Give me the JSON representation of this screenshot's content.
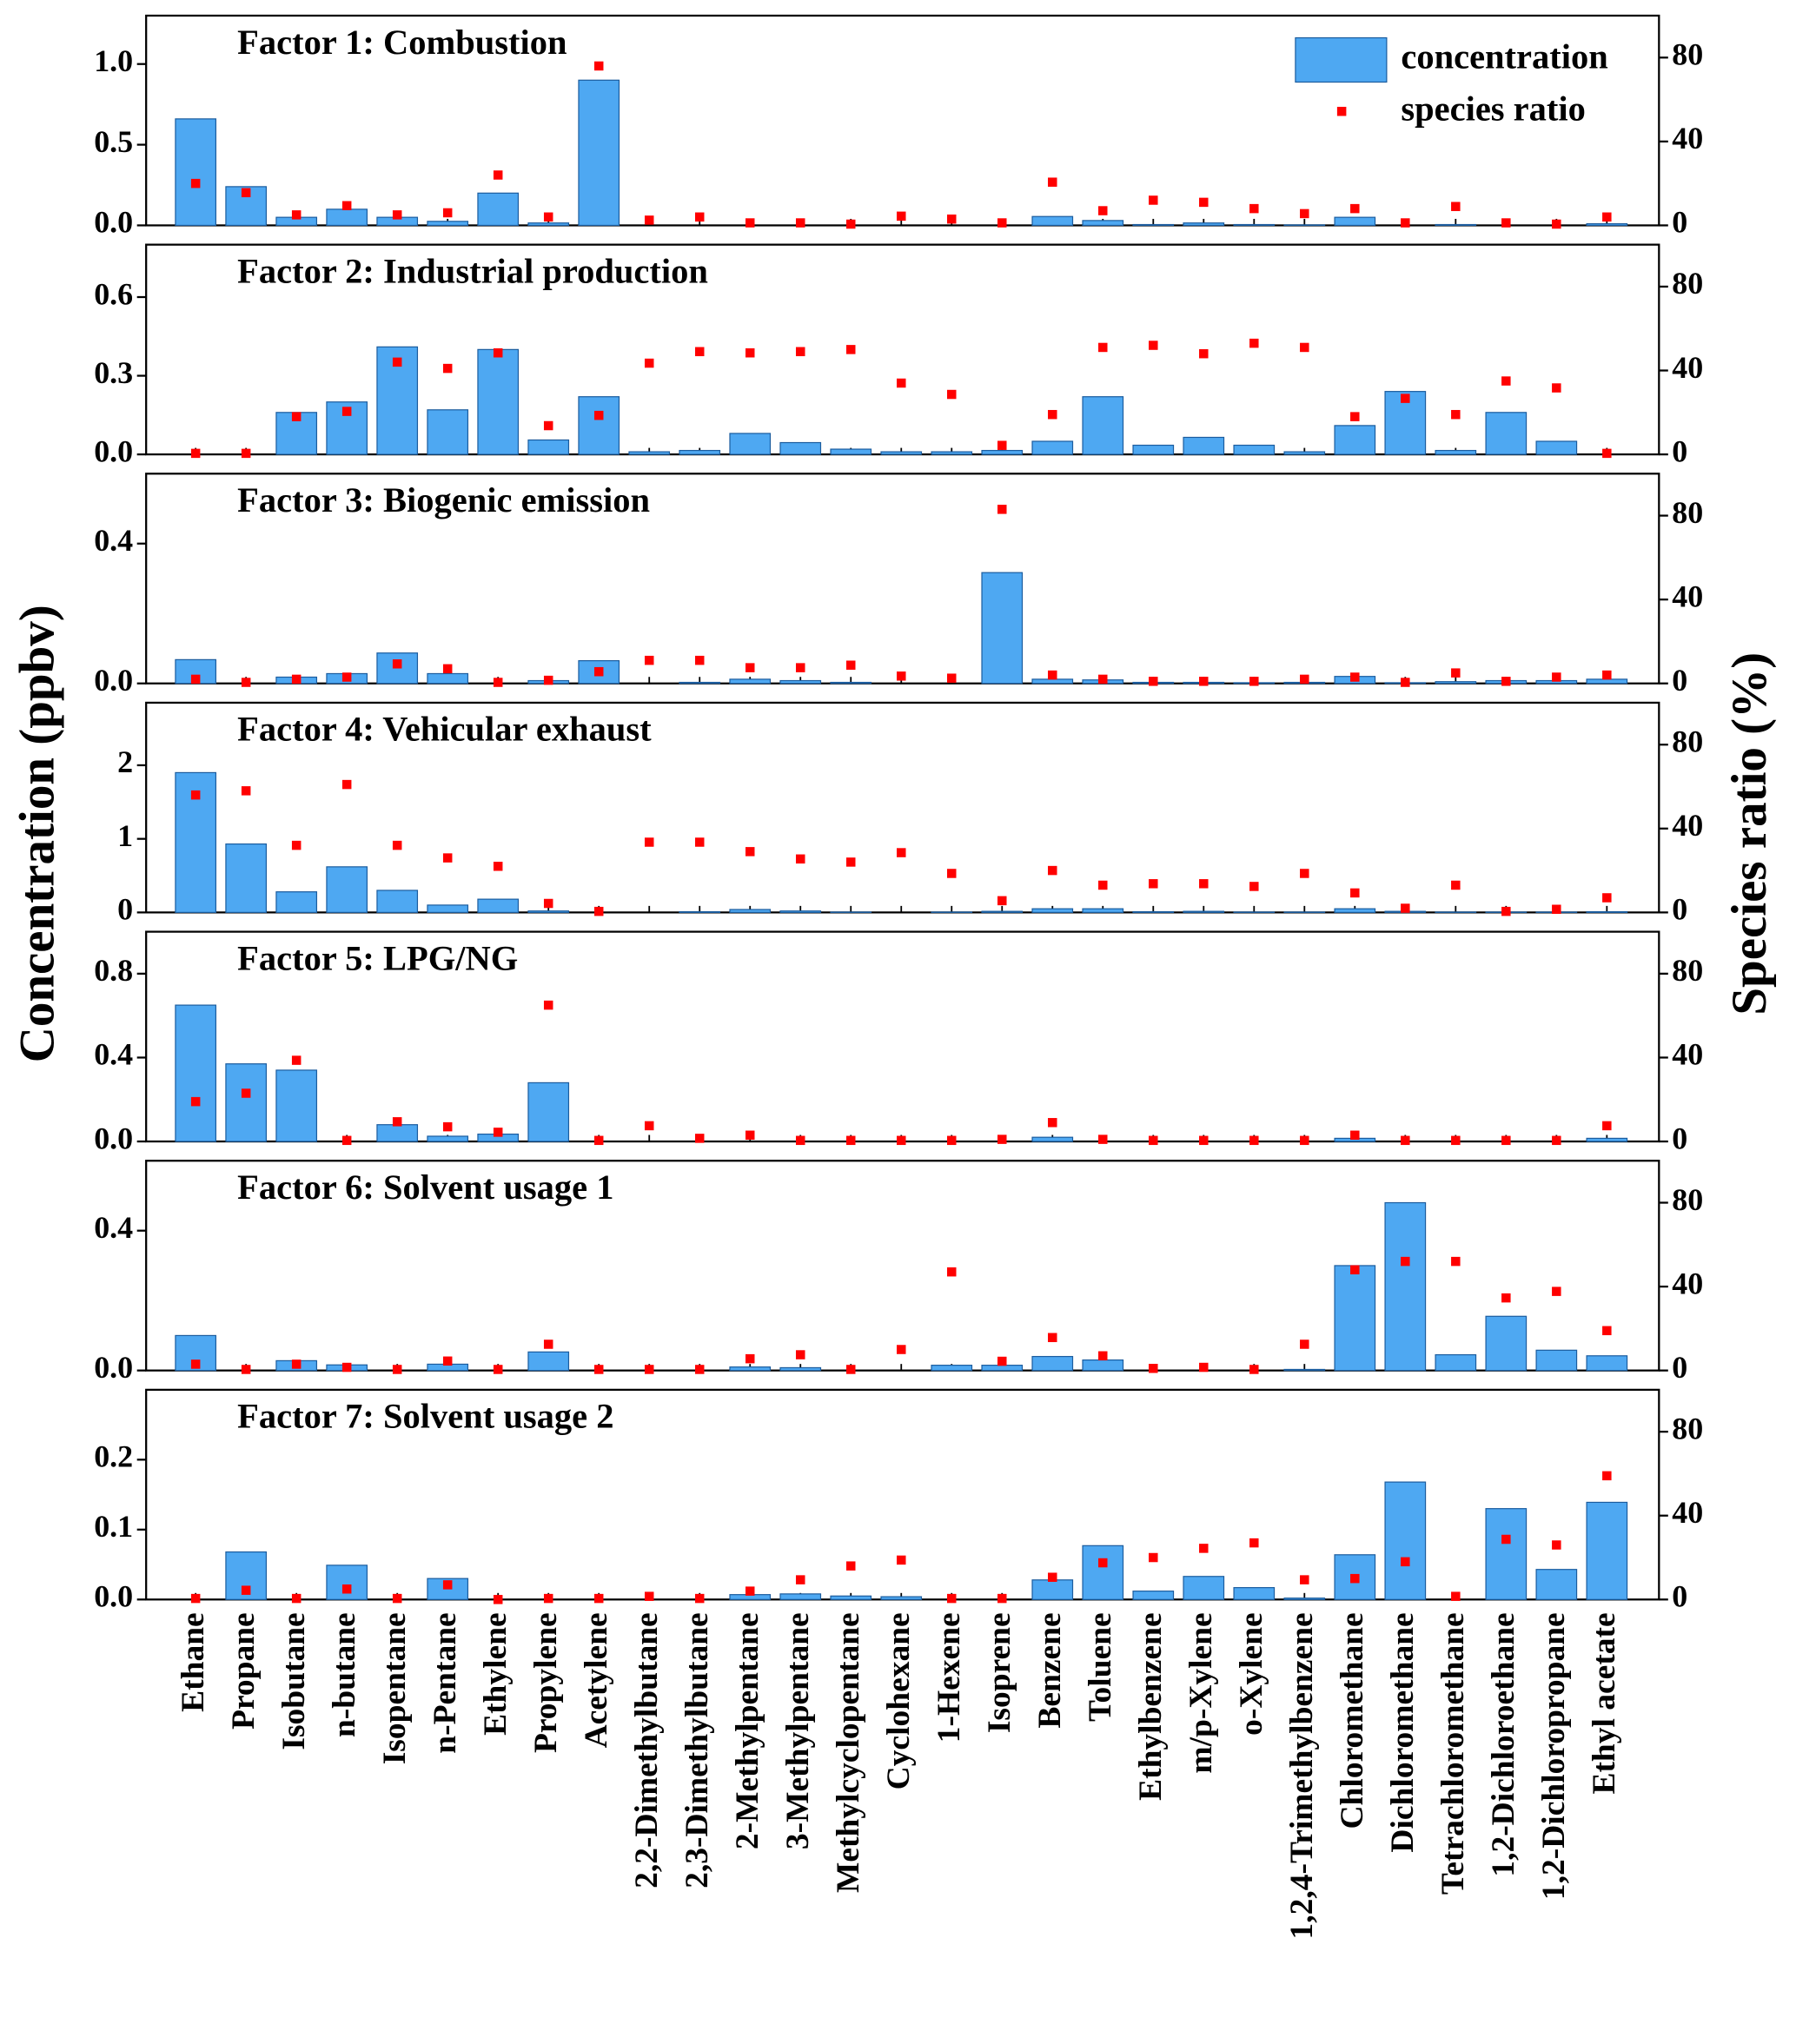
{
  "chart_data": {
    "type": "bar",
    "ylabel": "Concentration (ppbv)",
    "y2label": "Species ratio (%)",
    "legend": "upper right",
    "categories": [
      "Ethane",
      "Propane",
      "Isobutane",
      "n-butane",
      "Isopentane",
      "n-Pentane",
      "Ethylene",
      "Propylene",
      "Acetylene",
      "2,2-Dimethylbutane",
      "2,3-Dimethylbutane",
      "2-Methylpentane",
      "3-Methylpentane",
      "Methylcyclopentane",
      "Cyclohexane",
      "1-Hexene",
      "Isoprene",
      "Benzene",
      "Toluene",
      "Ethylbenzene",
      "m/p-Xylene",
      "o-Xylene",
      "1,2,4-Trimethylbenzene",
      "Chloromethane",
      "Dichloromethane",
      "Tetrachloromethane",
      "1,2-Dichloroethane",
      "1,2-Dichloropropane",
      "Ethyl acetate"
    ],
    "series": [
      {
        "name": "concentration",
        "color": "#4ea8f2",
        "mark": "bar"
      },
      {
        "name": "species ratio",
        "color": "#ff0000",
        "mark": "point",
        "axis": "y2"
      }
    ],
    "panels": [
      {
        "title": "Factor 1: Combustion",
        "ylim": [
          0,
          1.3
        ],
        "yticks": [
          {
            "value": 0,
            "label": "0.0"
          },
          {
            "value": 0.5,
            "label": "0.5"
          },
          {
            "value": 1,
            "label": "1.0"
          }
        ],
        "y2lim": [
          0,
          100
        ],
        "y2ticks": [
          0,
          40,
          80
        ],
        "series": [
          {
            "values": [
              0.66,
              0.24,
              0.05,
              0.1,
              0.05,
              0.025,
              0.2,
              0.015,
              0.9,
              0,
              0,
              0,
              0,
              0,
              0,
              0,
              0,
              0.055,
              0.03,
              0.005,
              0.015,
              0.005,
              0.003,
              0.05,
              0,
              0.005,
              0,
              0,
              0.01
            ]
          },
          {
            "values": [
              20,
              15.6,
              5,
              9.4,
              5,
              6,
              24,
              4,
              76,
              2.5,
              4,
              1.2,
              1.2,
              0.6,
              4.4,
              3,
              1.2,
              20.6,
              7,
              12,
              11,
              8,
              5.6,
              8,
              1.2,
              9,
              1.2,
              0.6,
              4
            ]
          }
        ]
      },
      {
        "title": "Factor 2: Industrial production",
        "ylim": [
          0,
          0.8
        ],
        "yticks": [
          {
            "value": 0,
            "label": "0.0"
          },
          {
            "value": 0.3,
            "label": "0.3"
          },
          {
            "value": 0.6,
            "label": "0.6"
          }
        ],
        "y2lim": [
          0,
          100
        ],
        "y2ticks": [
          0,
          40,
          80
        ],
        "series": [
          {
            "values": [
              0,
              0,
              0.16,
              0.2,
              0.41,
              0.17,
              0.4,
              0.055,
              0.22,
              0.01,
              0.015,
              0.08,
              0.045,
              0.02,
              0.01,
              0.01,
              0.015,
              0.05,
              0.22,
              0.035,
              0.065,
              0.035,
              0.01,
              0.11,
              0.24,
              0.015,
              0.16,
              0.05,
              0
            ]
          },
          {
            "values": [
              0.5,
              0.5,
              18,
              20.5,
              44,
              41,
              48.4,
              13.7,
              18.6,
              43.5,
              49,
              48.4,
              49,
              50,
              34,
              28.6,
              4.3,
              19,
              51,
              52,
              48,
              53,
              51,
              18,
              26.7,
              19,
              35,
              31.7,
              0.5
            ]
          }
        ]
      },
      {
        "title": "Factor 3: Biogenic emission",
        "ylim": [
          0,
          0.6
        ],
        "yticks": [
          {
            "value": 0,
            "label": "0.0"
          },
          {
            "value": 0.4,
            "label": "0.4"
          }
        ],
        "y2lim": [
          0,
          100
        ],
        "y2ticks": [
          0,
          40,
          80
        ],
        "series": [
          {
            "values": [
              0.068,
              0,
              0.018,
              0.028,
              0.087,
              0.028,
              0,
              0.008,
              0.065,
              0,
              0.003,
              0.012,
              0.008,
              0.003,
              0,
              0,
              0.317,
              0.012,
              0.01,
              0.003,
              0.003,
              0.002,
              0.003,
              0.02,
              0.002,
              0.005,
              0.008,
              0.008,
              0.012
            ]
          },
          {
            "values": [
              2,
              0.5,
              2,
              3,
              9.3,
              7,
              0.5,
              1.5,
              5.6,
              11,
              11,
              7.5,
              7.5,
              8.7,
              3.5,
              2.5,
              83,
              4,
              2,
              1,
              1,
              1,
              2,
              3,
              0.5,
              5,
              1,
              3,
              4
            ]
          }
        ]
      },
      {
        "title": "Factor 4: Vehicular exhaust",
        "ylim": [
          0,
          2.85
        ],
        "yticks": [
          0,
          1,
          2
        ],
        "y2lim": [
          0,
          100
        ],
        "y2ticks": [
          0,
          40,
          80
        ],
        "series": [
          {
            "values": [
              1.9,
              0.93,
              0.28,
              0.62,
              0.3,
              0.1,
              0.18,
              0.02,
              0,
              0,
              0.01,
              0.04,
              0.02,
              0.005,
              0,
              0.005,
              0.015,
              0.05,
              0.05,
              0.01,
              0.015,
              0.005,
              0.005,
              0.05,
              0.015,
              0.005,
              0.005,
              0.005,
              0.01
            ]
          },
          {
            "values": [
              56,
              58,
              32,
              61,
              32,
              26,
              22,
              4.3,
              0.5,
              33.5,
              33.5,
              29,
              25.5,
              24,
              28.5,
              18.6,
              5.6,
              20,
              13,
              13.7,
              13.7,
              12.4,
              18.6,
              9.3,
              2,
              13,
              0.5,
              1.5,
              7
            ]
          }
        ]
      },
      {
        "title": "Factor 5: LPG/NG",
        "ylim": [
          0,
          1.0
        ],
        "yticks": [
          {
            "value": 0,
            "label": "0.0"
          },
          {
            "value": 0.4,
            "label": "0.4"
          },
          {
            "value": 0.8,
            "label": "0.8"
          }
        ],
        "y2lim": [
          0,
          100
        ],
        "y2ticks": [
          0,
          40,
          80
        ],
        "series": [
          {
            "values": [
              0.65,
              0.37,
              0.34,
              0,
              0.08,
              0.025,
              0.035,
              0.28,
              0,
              0,
              0,
              0,
              0,
              0,
              0,
              0,
              0,
              0.02,
              0,
              0,
              0,
              0,
              0,
              0.015,
              0,
              0,
              0,
              0,
              0.015
            ]
          },
          {
            "values": [
              19,
              23,
              38.7,
              0.5,
              9.4,
              7,
              4.4,
              65,
              0.5,
              7.5,
              1.5,
              3,
              0.5,
              0.5,
              0.5,
              0.5,
              1,
              9,
              1,
              0.5,
              0.5,
              0.5,
              0.5,
              3,
              0.5,
              0.5,
              0.5,
              0.5,
              7.5
            ]
          }
        ]
      },
      {
        "title": "Factor 6: Solvent usage 1",
        "ylim": [
          0,
          0.6
        ],
        "yticks": [
          {
            "value": 0,
            "label": "0.0"
          },
          {
            "value": 0.4,
            "label": "0.4"
          }
        ],
        "y2lim": [
          0,
          100
        ],
        "y2ticks": [
          0,
          40,
          80
        ],
        "series": [
          {
            "values": [
              0.1,
              0,
              0.028,
              0.016,
              0,
              0.018,
              0,
              0.053,
              0,
              0,
              0,
              0.01,
              0.008,
              0,
              0,
              0.015,
              0.015,
              0.04,
              0.03,
              0,
              0,
              0,
              0.003,
              0.3,
              0.48,
              0.045,
              0.155,
              0.058,
              0.042
            ]
          },
          {
            "values": [
              3,
              0.5,
              3,
              1.5,
              0.5,
              4.5,
              0.5,
              12.5,
              0.5,
              0.5,
              0.5,
              5.6,
              7.5,
              0.5,
              10,
              47,
              4.4,
              15.7,
              7,
              1,
              1.5,
              0.5,
              12.5,
              48,
              52,
              52,
              34.6,
              37.7,
              19
            ]
          }
        ]
      },
      {
        "title": "Factor 7: Solvent usage 2",
        "ylim": [
          0,
          0.3
        ],
        "yticks": [
          {
            "value": 0,
            "label": "0.0"
          },
          {
            "value": 0.1,
            "label": "0.1"
          },
          {
            "value": 0.2,
            "label": "0.2"
          }
        ],
        "y2lim": [
          0,
          100
        ],
        "y2ticks": [
          0,
          40,
          80
        ],
        "series": [
          {
            "values": [
              0,
              0.068,
              0,
              0.049,
              0,
              0.03,
              0,
              0,
              0,
              0,
              0,
              0.007,
              0.008,
              0.005,
              0.004,
              0,
              0,
              0.028,
              0.077,
              0.012,
              0.033,
              0.017,
              0.002,
              0.064,
              0.168,
              0,
              0.13,
              0.043,
              0.139
            ]
          },
          {
            "values": [
              0.5,
              4.4,
              0.5,
              5,
              0.5,
              7,
              0,
              0.5,
              0.5,
              1.5,
              0.5,
              4,
              9.4,
              16,
              18.8,
              0.5,
              0.5,
              10.6,
              17.5,
              20,
              24.4,
              27,
              9.4,
              10,
              18,
              1.5,
              28.7,
              26,
              59
            ]
          }
        ]
      }
    ]
  }
}
